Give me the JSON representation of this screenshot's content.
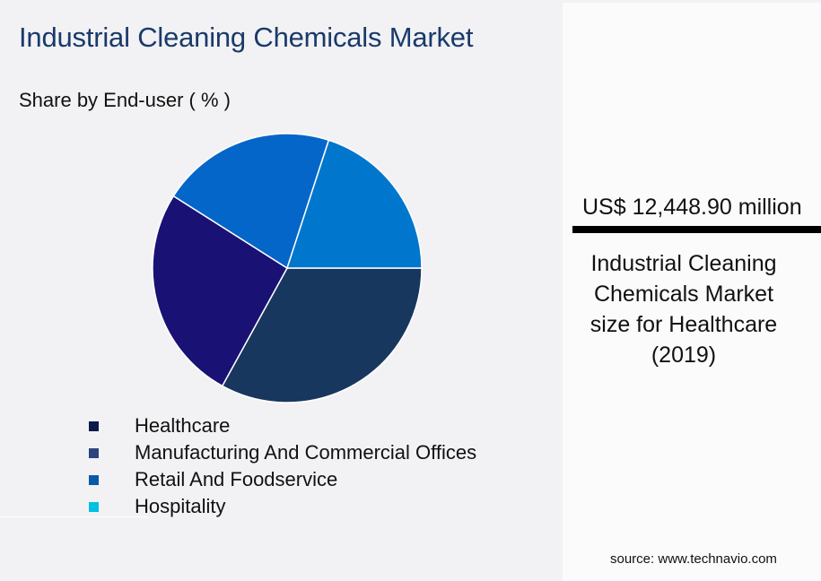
{
  "header": {
    "title": "Industrial Cleaning Chemicals Market",
    "subtitle": "Share by End-user ( % )"
  },
  "legend": {
    "items": [
      {
        "label": "Healthcare",
        "color": "#0c1b48"
      },
      {
        "label": "Manufacturing And Commercial Offices",
        "color": "#2c437c"
      },
      {
        "label": "Retail And Foodservice",
        "color": "#0959a8"
      },
      {
        "label": "Hospitality",
        "color": "#00c0e2"
      }
    ]
  },
  "kpi": {
    "value": "US$ 12,448.90 million",
    "description": "Industrial Cleaning\nChemicals Market\nsize for Healthcare\n(2019)"
  },
  "footer": {
    "source": "source: www.technavio.com"
  },
  "chart_data": {
    "type": "pie",
    "title": "Industrial Cleaning Chemicals Market",
    "subtitle": "Share by End-user ( % )",
    "categories": [
      "Healthcare",
      "Manufacturing And Commercial Offices",
      "Retail And Foodservice",
      "Hospitality"
    ],
    "values": [
      33,
      26,
      21,
      20
    ],
    "slice_colors": [
      "#17375e",
      "#1a1175",
      "#0466c8",
      "#0077cc"
    ],
    "start_angle_deg": 0,
    "direction": "clockwise",
    "legend_position": "bottom",
    "annotation": "US$ 12,448.90 million — Industrial Cleaning Chemicals Market size for Healthcare (2019)"
  }
}
